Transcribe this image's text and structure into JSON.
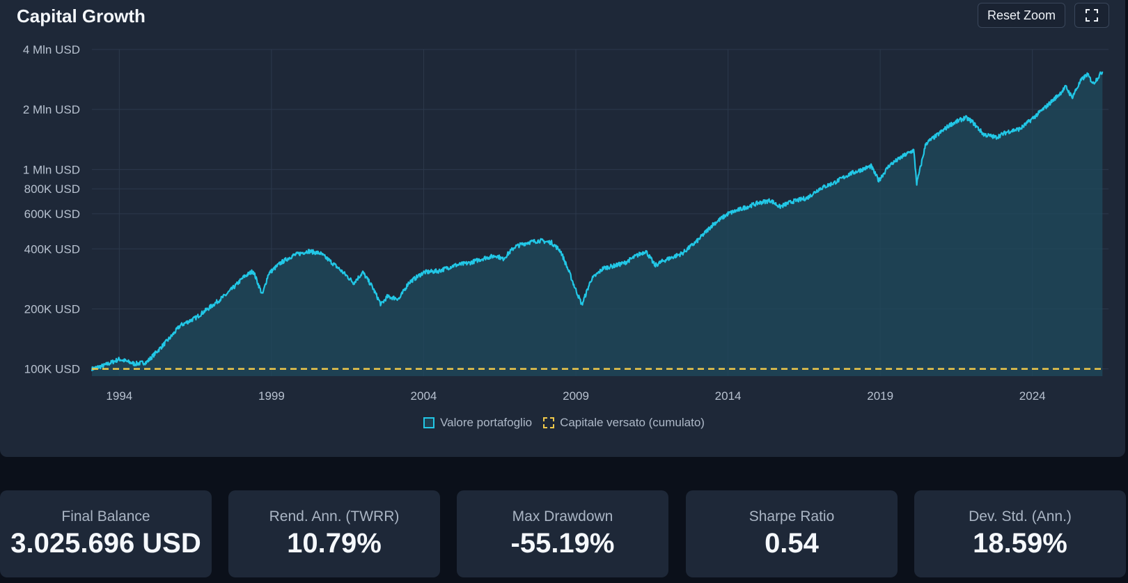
{
  "header": {
    "title": "Capital Growth",
    "reset_label": "Reset Zoom",
    "fullscreen_icon": "fullscreen-icon"
  },
  "colors": {
    "portfolio": "#22c7e6",
    "capital": "#f0c94a",
    "grid": "#2c394c",
    "card": "#1e2838"
  },
  "legend": {
    "portfolio_label": "Valore portafoglio",
    "capital_label": "Capitale versato (cumulato)"
  },
  "chart_data": {
    "type": "area",
    "title": "",
    "xlabel": "",
    "ylabel": "",
    "y_scale": "log",
    "xlim": [
      1993.1,
      2026.5
    ],
    "ylim": [
      92000,
      4000000
    ],
    "x_ticks": [
      1994,
      1999,
      2004,
      2009,
      2014,
      2019,
      2024
    ],
    "y_ticks": [
      {
        "value": 4000000,
        "label": "4 Mln USD"
      },
      {
        "value": 2000000,
        "label": "2 Mln USD"
      },
      {
        "value": 1000000,
        "label": "1 Mln USD"
      },
      {
        "value": 800000,
        "label": "800K USD"
      },
      {
        "value": 600000,
        "label": "600K USD"
      },
      {
        "value": 400000,
        "label": "400K USD"
      },
      {
        "value": 200000,
        "label": "200K USD"
      },
      {
        "value": 100000,
        "label": "100K USD"
      }
    ],
    "grid": true,
    "legend_position": "bottom",
    "series": [
      {
        "name": "Valore portafoglio",
        "x": [
          1993.1,
          1993.5,
          1994.0,
          1994.5,
          1994.9,
          1995.3,
          1995.7,
          1996.0,
          1996.5,
          1997.0,
          1997.5,
          1997.8,
          1998.1,
          1998.4,
          1998.7,
          1998.9,
          1999.3,
          1999.7,
          2000.2,
          2000.6,
          2000.9,
          2001.2,
          2001.5,
          2001.7,
          2002.0,
          2002.3,
          2002.6,
          2002.8,
          2003.2,
          2003.5,
          2004.0,
          2004.5,
          2005.0,
          2005.5,
          2006.0,
          2006.4,
          2006.6,
          2007.0,
          2007.4,
          2007.8,
          2008.2,
          2008.5,
          2008.8,
          2008.95,
          2009.2,
          2009.5,
          2009.9,
          2010.3,
          2010.6,
          2011.0,
          2011.3,
          2011.6,
          2011.9,
          2012.5,
          2013.0,
          2013.5,
          2014.0,
          2014.5,
          2015.0,
          2015.4,
          2015.7,
          2016.1,
          2016.6,
          2017.0,
          2017.5,
          2018.0,
          2018.7,
          2018.95,
          2019.3,
          2019.8,
          2020.1,
          2020.2,
          2020.5,
          2020.9,
          2021.3,
          2021.8,
          2022.0,
          2022.4,
          2022.8,
          2023.2,
          2023.6,
          2024.0,
          2024.5,
          2024.9,
          2025.1,
          2025.3,
          2025.6,
          2025.8,
          2026.0,
          2026.3
        ],
        "y": [
          100000,
          104000,
          112000,
          106000,
          108000,
          125000,
          145000,
          165000,
          180000,
          205000,
          235000,
          260000,
          290000,
          310000,
          235000,
          300000,
          340000,
          370000,
          390000,
          380000,
          350000,
          320000,
          290000,
          270000,
          305000,
          260000,
          210000,
          230000,
          225000,
          270000,
          305000,
          310000,
          330000,
          340000,
          360000,
          370000,
          355000,
          410000,
          430000,
          440000,
          430000,
          390000,
          300000,
          260000,
          210000,
          280000,
          320000,
          330000,
          340000,
          370000,
          390000,
          330000,
          350000,
          380000,
          440000,
          530000,
          600000,
          640000,
          680000,
          700000,
          650000,
          690000,
          720000,
          800000,
          860000,
          950000,
          1040000,
          880000,
          1050000,
          1180000,
          1250000,
          850000,
          1350000,
          1500000,
          1680000,
          1820000,
          1750000,
          1500000,
          1450000,
          1550000,
          1600000,
          1800000,
          2100000,
          2400000,
          2600000,
          2300000,
          2800000,
          3000000,
          2700000,
          3100000
        ]
      },
      {
        "name": "Capitale versato (cumulato)",
        "x": [
          1993.1,
          2026.3
        ],
        "y": [
          100000,
          100000
        ]
      }
    ]
  },
  "stats": [
    {
      "label": "Final Balance",
      "value": "3.025.696 USD"
    },
    {
      "label": "Rend. Ann. (TWRR)",
      "value": "10.79%"
    },
    {
      "label": "Max Drawdown",
      "value": "-55.19%"
    },
    {
      "label": "Sharpe Ratio",
      "value": "0.54"
    },
    {
      "label": "Dev. Std. (Ann.)",
      "value": "18.59%"
    }
  ]
}
